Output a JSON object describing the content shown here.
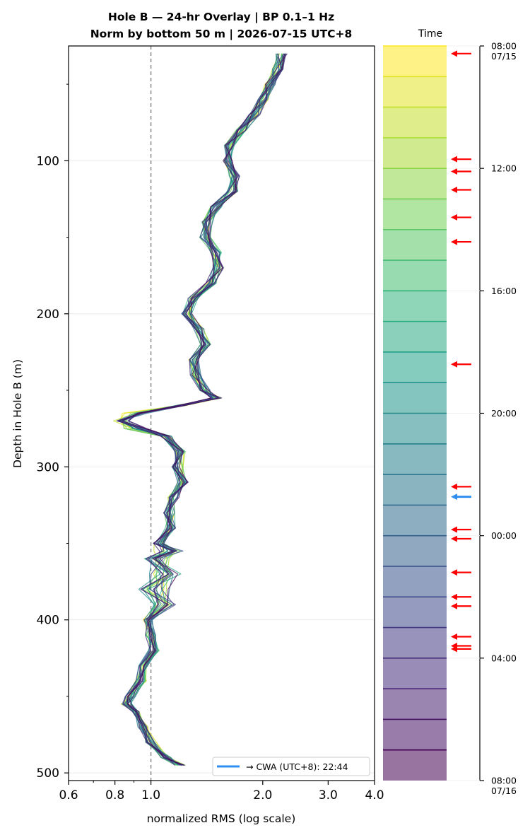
{
  "chart_data": {
    "type": "line",
    "title": "Hole B — 24-hr Overlay  |  BP 0.1–1 Hz",
    "subtitle": "Norm by bottom 50 m  |  2026-07-15 UTC+8",
    "xlabel": "normalized RMS  (log scale)",
    "ylabel": "Depth in Hole B (m)",
    "xscale": "log",
    "xlim": [
      0.6,
      4.0
    ],
    "ylim": [
      505,
      25
    ],
    "y_inverted": true,
    "grid": true,
    "x_ticks": [
      {
        "value": 0.6,
        "label": "0.6"
      },
      {
        "value": 0.8,
        "label": "0.8"
      },
      {
        "value": 1.0,
        "label": "1.0"
      },
      {
        "value": 2.0,
        "label": "2.0"
      },
      {
        "value": 3.0,
        "label": "3.0"
      },
      {
        "value": 4.0,
        "label": "4.0"
      }
    ],
    "y_ticks": [
      {
        "value": 100,
        "label": "100"
      },
      {
        "value": 200,
        "label": "200"
      },
      {
        "value": 300,
        "label": "300"
      },
      {
        "value": 400,
        "label": "400"
      },
      {
        "value": 500,
        "label": "500"
      }
    ],
    "reference_line_x": 1.0,
    "series_count": 24,
    "colormap": [
      "#fde725",
      "#b5de2b",
      "#6ece58",
      "#35b779",
      "#1f9e89",
      "#26828e",
      "#31688e",
      "#3e4989",
      "#482878",
      "#440154"
    ],
    "depth": [
      30,
      40,
      50,
      60,
      70,
      80,
      90,
      100,
      110,
      120,
      130,
      140,
      150,
      160,
      170,
      180,
      190,
      200,
      210,
      220,
      230,
      240,
      250,
      255,
      260,
      265,
      270,
      275,
      280,
      290,
      300,
      310,
      320,
      330,
      340,
      350,
      355,
      360,
      370,
      380,
      390,
      400,
      410,
      420,
      430,
      440,
      450,
      455,
      460,
      470,
      480,
      490,
      495
    ],
    "rms": [
      2.25,
      2.2,
      2.1,
      2.0,
      1.9,
      1.75,
      1.62,
      1.6,
      1.68,
      1.66,
      1.5,
      1.42,
      1.4,
      1.5,
      1.52,
      1.45,
      1.3,
      1.25,
      1.35,
      1.4,
      1.3,
      1.32,
      1.4,
      1.5,
      1.2,
      0.95,
      0.85,
      0.95,
      1.1,
      1.2,
      1.18,
      1.22,
      1.15,
      1.12,
      1.13,
      1.05,
      1.1,
      1.02,
      1.08,
      1.02,
      1.05,
      0.98,
      1.0,
      1.02,
      0.96,
      0.94,
      0.88,
      0.86,
      0.9,
      0.95,
      1.0,
      1.1,
      1.2
    ],
    "legend": {
      "label": "→ CWA (UTC+8): 22:44",
      "color": "#2f8ff0",
      "placement": "lower right"
    },
    "colorbar": {
      "title": "Time",
      "start": "2026-07-15 08:00",
      "end": "2026-07-16 08:00",
      "n_bands": 24,
      "ticks": [
        {
          "label": "08:00",
          "sublabel": "07/15",
          "hours": 0
        },
        {
          "label": "12:00",
          "sublabel": "",
          "hours": 4
        },
        {
          "label": "16:00",
          "sublabel": "",
          "hours": 8
        },
        {
          "label": "20:00",
          "sublabel": "",
          "hours": 12
        },
        {
          "label": "00:00",
          "sublabel": "",
          "hours": 16
        },
        {
          "label": "04:00",
          "sublabel": "",
          "hours": 20
        },
        {
          "label": "08:00",
          "sublabel": "07/16",
          "hours": 24
        }
      ],
      "event_arrows_hours": [
        0.25,
        3.7,
        4.1,
        4.7,
        5.6,
        6.4,
        10.4,
        14.4,
        15.8,
        16.1,
        17.2,
        18.0,
        18.3,
        19.3,
        19.6,
        19.7
      ],
      "event_arrow_color": "#ff0000",
      "cwa_arrow_hours": 14.73,
      "cwa_arrow_color": "#2f8ff0"
    }
  }
}
